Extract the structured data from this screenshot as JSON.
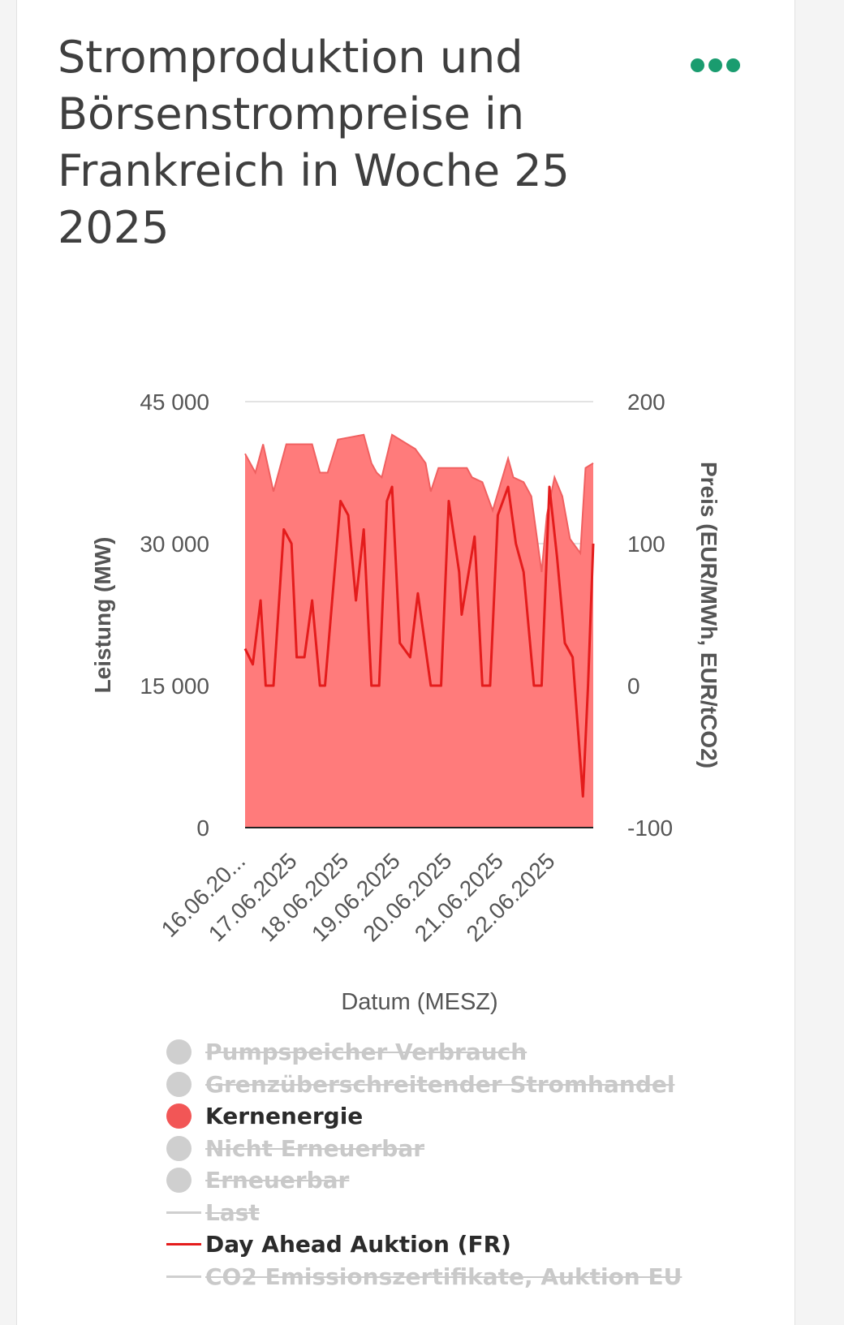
{
  "title": "Stromproduktion und Börsenstrompreise in Frankreich in Woche 25 2025",
  "menu_icon": "more-horizontal-icon",
  "colors": {
    "accent": "#1a9c6f",
    "nuclear_fill": "#ff7b7b",
    "nuclear_line": "#f06060",
    "price": "#e41c1c",
    "inactive": "#cfcfcf"
  },
  "chart_data": {
    "type": "area",
    "xlabel": "Datum (MESZ)",
    "ylabel": "Leistung (MW)",
    "y2label": "Preis (EUR/MWh, EUR/tCO2)",
    "ylim": [
      0,
      45000
    ],
    "y2lim": [
      -100,
      200
    ],
    "yticks": [
      "45 000",
      "30 000",
      "15 000",
      "0"
    ],
    "y2ticks": [
      "200",
      "100",
      "0",
      "-100"
    ],
    "x_range_days": [
      0,
      6.75
    ],
    "x_tick_days": [
      0,
      1,
      2,
      3,
      4,
      5,
      6
    ],
    "xticks": [
      "16.06.20...",
      "17.06.2025",
      "18.06.2025",
      "19.06.2025",
      "20.06.2025",
      "21.06.2025",
      "22.06.2025"
    ],
    "grid": true,
    "series": [
      {
        "name": "Kernenergie",
        "axis": "left",
        "x": [
          0,
          0.2,
          0.35,
          0.55,
          0.8,
          1.3,
          1.45,
          1.6,
          1.8,
          2.3,
          2.45,
          2.55,
          2.65,
          2.85,
          3.3,
          3.5,
          3.6,
          3.75,
          3.85,
          4.3,
          4.4,
          4.6,
          4.8,
          5.1,
          5.2,
          5.4,
          5.55,
          5.75,
          5.85,
          6.0,
          6.15,
          6.3,
          6.5,
          6.6,
          6.75
        ],
        "values": [
          39500,
          37500,
          40500,
          35500,
          40500,
          40500,
          37500,
          37500,
          41000,
          41500,
          38500,
          37500,
          37000,
          41500,
          40000,
          38500,
          35500,
          38000,
          38000,
          38000,
          37000,
          36500,
          33500,
          39000,
          37000,
          36500,
          35000,
          27000,
          33000,
          37000,
          35000,
          30500,
          29000,
          38000,
          38500
        ]
      },
      {
        "name": "Day Ahead Auktion (FR)",
        "axis": "right",
        "x": [
          0,
          0.15,
          0.3,
          0.4,
          0.55,
          0.75,
          0.9,
          1.0,
          1.15,
          1.3,
          1.45,
          1.55,
          1.85,
          2.0,
          2.15,
          2.3,
          2.45,
          2.6,
          2.75,
          2.85,
          3.0,
          3.2,
          3.35,
          3.6,
          3.8,
          3.95,
          4.15,
          4.2,
          4.45,
          4.6,
          4.75,
          4.9,
          5.1,
          5.25,
          5.4,
          5.6,
          5.75,
          5.9,
          6.05,
          6.2,
          6.35,
          6.55,
          6.65,
          6.75
        ],
        "values": [
          26,
          15,
          60,
          0,
          0,
          110,
          100,
          20,
          20,
          60,
          0,
          0,
          130,
          120,
          60,
          110,
          0,
          0,
          130,
          140,
          30,
          20,
          65,
          0,
          0,
          130,
          80,
          50,
          105,
          0,
          0,
          120,
          140,
          100,
          80,
          0,
          0,
          140,
          90,
          30,
          20,
          -78,
          0,
          100
        ]
      }
    ],
    "legend": [
      {
        "label": "Pumpspeicher Verbrauch",
        "symbol": "dot",
        "active": false,
        "color": "#cfcfcf"
      },
      {
        "label": "Grenzüberschreitender Stromhandel",
        "symbol": "dot",
        "active": false,
        "color": "#cfcfcf"
      },
      {
        "label": "Kernenergie",
        "symbol": "dot",
        "active": true,
        "color": "#f25656"
      },
      {
        "label": "Nicht Erneuerbar",
        "symbol": "dot",
        "active": false,
        "color": "#cfcfcf"
      },
      {
        "label": "Erneuerbar",
        "symbol": "dot",
        "active": false,
        "color": "#cfcfcf"
      },
      {
        "label": "Last",
        "symbol": "line",
        "active": false,
        "color": "#cfcfcf"
      },
      {
        "label": "Day Ahead Auktion (FR)",
        "symbol": "line",
        "active": true,
        "color": "#e41c1c"
      },
      {
        "label": "CO2 Emissionszertifikate, Auktion EU",
        "symbol": "line",
        "active": false,
        "color": "#cfcfcf"
      }
    ],
    "legend_position": "bottom"
  }
}
